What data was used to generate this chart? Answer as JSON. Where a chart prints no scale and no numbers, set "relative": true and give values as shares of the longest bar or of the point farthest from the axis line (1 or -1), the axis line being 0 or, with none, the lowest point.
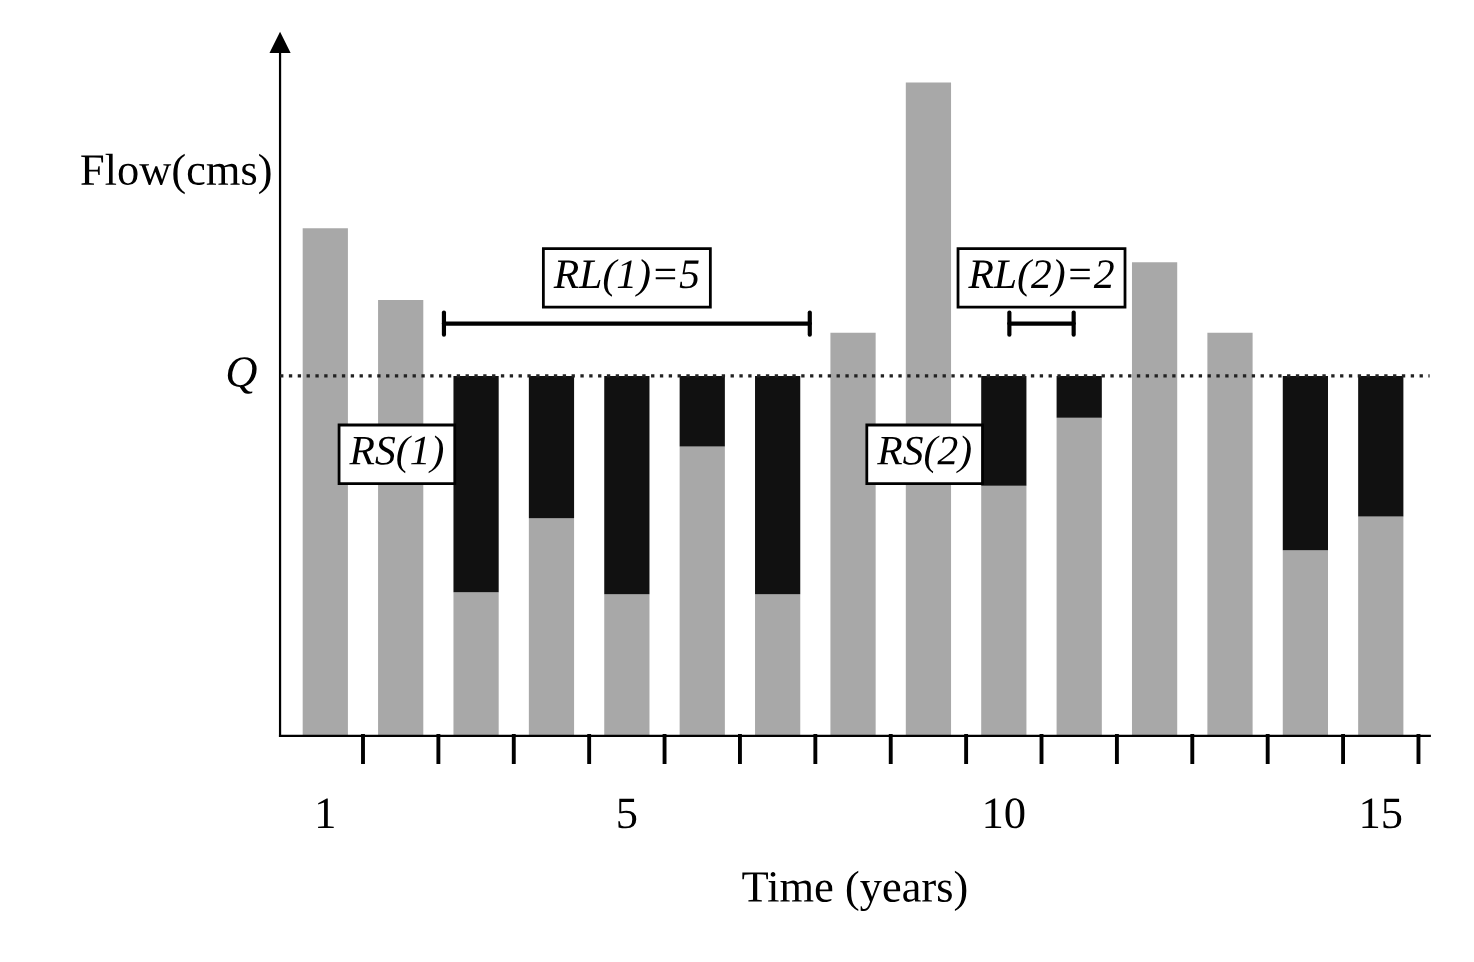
{
  "chart_data": {
    "type": "bar",
    "relative": true,
    "stacked": true,
    "xlabel": "Time (years)",
    "ylabel": "Flow(cms)",
    "categories": [
      "1",
      null,
      null,
      null,
      "5",
      null,
      null,
      null,
      null,
      "10",
      null,
      null,
      null,
      null,
      "15"
    ],
    "series": [
      {
        "color": "#a8a8a8",
        "values": [
          0.777,
          0.667,
          0.22,
          0.333,
          0.217,
          0.443,
          0.217,
          0.617,
          1.0,
          0.383,
          0.487,
          0.725,
          0.617,
          0.284,
          0.336
        ]
      },
      {
        "color": "#111111",
        "values": [
          null,
          null,
          0.331,
          0.218,
          0.334,
          0.108,
          0.334,
          null,
          null,
          0.168,
          0.064,
          null,
          null,
          0.267,
          0.215
        ]
      }
    ],
    "ref_lines": [
      {
        "axis": "y",
        "value": 0.551,
        "label": "Q",
        "color": "#222222",
        "line_style": "dotted"
      }
    ],
    "annotations": [
      "RL(1)=5",
      "RS(1)",
      "RL(2)=2",
      "RS(2)"
    ],
    "grid": false,
    "legend": false
  }
}
